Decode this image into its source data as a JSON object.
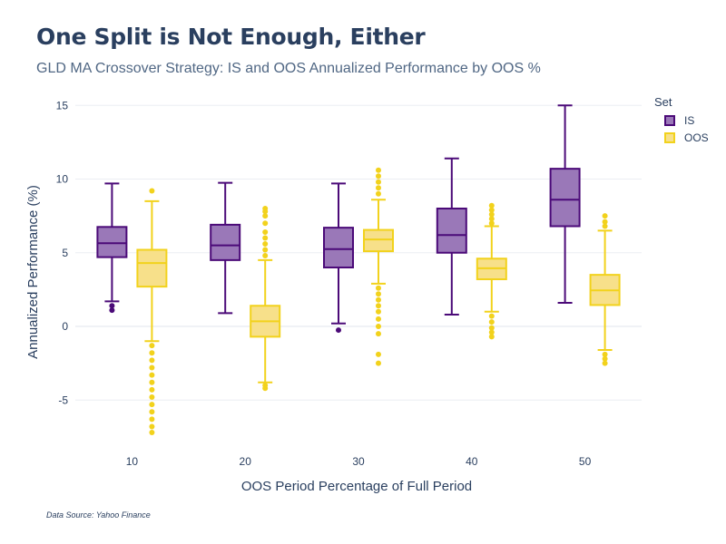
{
  "title": "One Split is Not Enough, Either",
  "subtitle": "GLD MA Crossover Strategy: IS and OOS Annualized Performance by OOS %",
  "source": "Data Source: Yahoo Finance",
  "colors": {
    "IS_fill": "#9a78b8",
    "IS_line": "#4b0a78",
    "OOS_fill": "#f7e08a",
    "OOS_line": "#f2d21c",
    "grid": "#ebeef3"
  },
  "chart_data": {
    "type": "box",
    "xlabel": "OOS Period Percentage of Full Period",
    "ylabel": "Annualized Performance (%)",
    "ylim": [
      -8,
      16
    ],
    "yticks": [
      -5,
      0,
      5,
      10,
      15
    ],
    "categories": [
      "10",
      "20",
      "30",
      "40",
      "50"
    ],
    "legend": {
      "title": "Set",
      "position": "top-right"
    },
    "series": [
      {
        "name": "IS",
        "boxes": [
          {
            "q1": 4.7,
            "median": 5.65,
            "q3": 6.75,
            "lower_whisker": 1.7,
            "upper_whisker": 9.7,
            "outliers": [
              1.4,
              1.1
            ]
          },
          {
            "q1": 4.5,
            "median": 5.5,
            "q3": 6.9,
            "lower_whisker": 0.9,
            "upper_whisker": 9.75,
            "outliers": []
          },
          {
            "q1": 4.0,
            "median": 5.25,
            "q3": 6.7,
            "lower_whisker": 0.2,
            "upper_whisker": 9.7,
            "outliers": [
              -0.25
            ]
          },
          {
            "q1": 5.0,
            "median": 6.2,
            "q3": 8.0,
            "lower_whisker": 0.8,
            "upper_whisker": 11.4,
            "outliers": []
          },
          {
            "q1": 6.8,
            "median": 8.6,
            "q3": 10.7,
            "lower_whisker": 1.6,
            "upper_whisker": 15.0,
            "outliers": []
          }
        ]
      },
      {
        "name": "OOS",
        "boxes": [
          {
            "q1": 2.7,
            "median": 4.3,
            "q3": 5.2,
            "lower_whisker": -1.0,
            "upper_whisker": 8.5,
            "outliers": [
              9.2,
              -1.3,
              -1.8,
              -2.3,
              -2.8,
              -3.3,
              -3.8,
              -4.3,
              -4.8,
              -5.3,
              -5.8,
              -6.3,
              -6.8,
              -7.2
            ]
          },
          {
            "q1": -0.7,
            "median": 0.35,
            "q3": 1.4,
            "lower_whisker": -3.8,
            "upper_whisker": 4.5,
            "outliers": [
              4.8,
              5.2,
              5.6,
              6.0,
              6.4,
              7.0,
              7.5,
              7.8,
              8.0,
              -4.0,
              -4.2
            ]
          },
          {
            "q1": 5.1,
            "median": 5.9,
            "q3": 6.55,
            "lower_whisker": 2.9,
            "upper_whisker": 8.6,
            "outliers": [
              9.0,
              9.4,
              9.8,
              10.2,
              10.6,
              2.6,
              2.2,
              1.8,
              1.4,
              1.0,
              0.5,
              0.0,
              -0.5,
              -1.9,
              -2.5
            ]
          },
          {
            "q1": 3.2,
            "median": 3.95,
            "q3": 4.6,
            "lower_whisker": 1.0,
            "upper_whisker": 6.8,
            "outliers": [
              7.0,
              7.3,
              7.6,
              7.9,
              8.2,
              0.7,
              0.3,
              -0.1,
              -0.4,
              -0.7
            ]
          },
          {
            "q1": 1.45,
            "median": 2.45,
            "q3": 3.5,
            "lower_whisker": -1.6,
            "upper_whisker": 6.5,
            "outliers": [
              6.8,
              7.1,
              7.5,
              -1.9,
              -2.2,
              -2.5
            ]
          }
        ]
      }
    ]
  }
}
